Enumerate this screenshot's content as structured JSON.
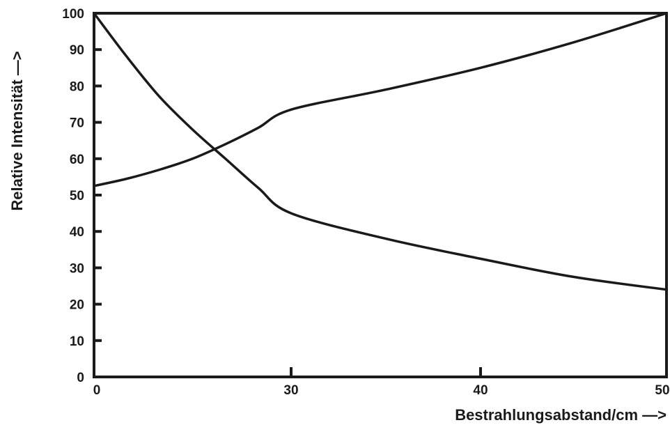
{
  "chart_data": {
    "type": "line",
    "title": "",
    "xlabel": "Bestrahlungsabstand/cm —>",
    "ylabel": "Relative Intensität —>",
    "x_ticks": [
      {
        "value": 0,
        "label": "0"
      },
      {
        "value": 30,
        "label": "30"
      },
      {
        "value": 40,
        "label": "40"
      },
      {
        "value": 50,
        "label": "50"
      }
    ],
    "y_ticks": [
      {
        "value": 0,
        "label": "0"
      },
      {
        "value": 10,
        "label": "10"
      },
      {
        "value": 20,
        "label": "20"
      },
      {
        "value": 30,
        "label": "30"
      },
      {
        "value": 40,
        "label": "40"
      },
      {
        "value": 50,
        "label": "50"
      },
      {
        "value": 60,
        "label": "60"
      },
      {
        "value": 70,
        "label": "70"
      },
      {
        "value": 80,
        "label": "80"
      },
      {
        "value": 90,
        "label": "90"
      },
      {
        "value": 100,
        "label": "100"
      }
    ],
    "ylim": [
      0,
      100
    ],
    "grid": false,
    "series": [
      {
        "points": [
          [
            0,
            100
          ],
          [
            5,
            88
          ],
          [
            10,
            77
          ],
          [
            15,
            68
          ],
          [
            20,
            60
          ],
          [
            25,
            52
          ],
          [
            30,
            45
          ],
          [
            35,
            38
          ],
          [
            40,
            32.5
          ],
          [
            45,
            27.5
          ],
          [
            50,
            24
          ]
        ]
      },
      {
        "points": [
          [
            0,
            52.5
          ],
          [
            5,
            54.5
          ],
          [
            10,
            57
          ],
          [
            15,
            60
          ],
          [
            20,
            64
          ],
          [
            25,
            68.5
          ],
          [
            30,
            73.5
          ],
          [
            35,
            79
          ],
          [
            40,
            85
          ],
          [
            45,
            92
          ],
          [
            50,
            100
          ]
        ]
      }
    ]
  }
}
